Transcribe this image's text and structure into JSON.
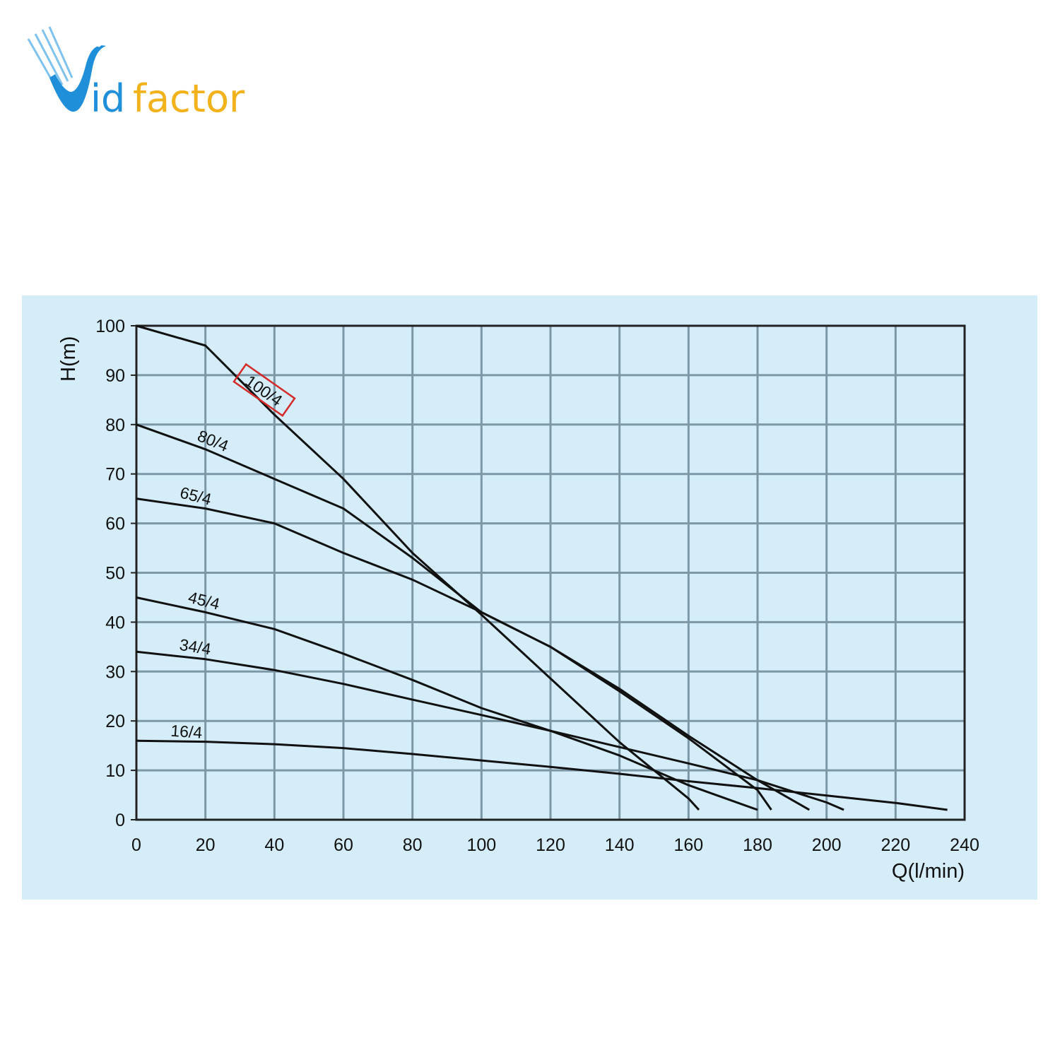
{
  "logo": {
    "text_vid": "Vid",
    "text_factor": "factor",
    "colors": {
      "blue": "#1e8fd8",
      "orange": "#f2b21c"
    }
  },
  "chart_data": {
    "type": "line",
    "title": "",
    "xlabel": "Q(l/min)",
    "ylabel": "H(m)",
    "xlim": [
      0,
      240
    ],
    "ylim": [
      0,
      100
    ],
    "xticks": [
      0,
      20,
      40,
      60,
      80,
      100,
      120,
      140,
      160,
      180,
      200,
      220,
      240
    ],
    "yticks": [
      0,
      10,
      20,
      30,
      40,
      50,
      60,
      70,
      80,
      90,
      100
    ],
    "grid": true,
    "background_color": "#d5edf8",
    "line_color": "#111111",
    "highlight": {
      "series": "100/4",
      "color": "#d42a2a"
    },
    "series": [
      {
        "name": "100/4",
        "x": [
          0,
          20,
          40,
          60,
          80,
          100,
          120,
          140,
          160,
          163
        ],
        "y": [
          100,
          96,
          82,
          69,
          54,
          41.5,
          28.6,
          15.7,
          4.3,
          2
        ]
      },
      {
        "name": "80/4",
        "x": [
          0,
          20,
          40,
          60,
          80,
          100,
          120,
          140,
          160,
          180,
          184
        ],
        "y": [
          80,
          75,
          69,
          63,
          53,
          42,
          35,
          26,
          16.5,
          6,
          2
        ]
      },
      {
        "name": "65/4",
        "x": [
          0,
          20,
          40,
          60,
          80,
          100,
          120,
          140,
          160,
          180,
          195
        ],
        "y": [
          65,
          63,
          60,
          54,
          48.6,
          42,
          35,
          26.5,
          17,
          8,
          2
        ]
      },
      {
        "name": "45/4",
        "x": [
          0,
          20,
          40,
          60,
          80,
          100,
          120,
          140,
          160,
          180
        ],
        "y": [
          45,
          42,
          38.6,
          33.6,
          28.3,
          22.6,
          18,
          13,
          7,
          2
        ]
      },
      {
        "name": "34/4",
        "x": [
          0,
          20,
          40,
          60,
          80,
          100,
          120,
          140,
          160,
          180,
          200,
          205
        ],
        "y": [
          34,
          32.5,
          30.3,
          27.5,
          24.3,
          21.2,
          18,
          14.7,
          11.4,
          8,
          3.5,
          2
        ]
      },
      {
        "name": "16/4",
        "x": [
          0,
          20,
          40,
          60,
          80,
          100,
          120,
          140,
          160,
          180,
          200,
          220,
          235
        ],
        "y": [
          16,
          15.8,
          15.3,
          14.5,
          13.3,
          12,
          10.7,
          9.3,
          7.8,
          6.4,
          4.9,
          3.4,
          2
        ]
      }
    ]
  }
}
